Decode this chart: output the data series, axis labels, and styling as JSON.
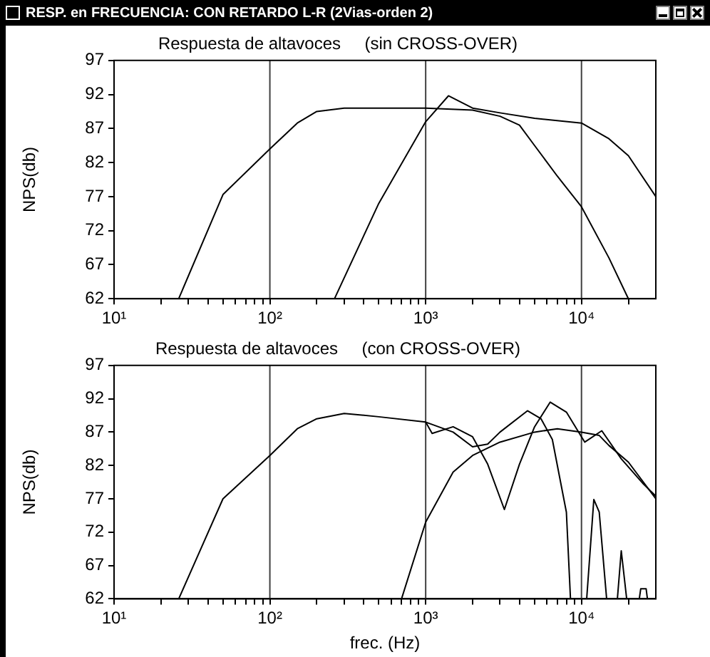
{
  "chart_data": [
    {
      "type": "line",
      "title": "Respuesta de altavoces     (sin CROSS-OVER)",
      "ylabel": "NPS(db)",
      "log": "x",
      "annotations": [
        "RESP. en FRECUENCIA: CON RETARDO L-R (2Vias-orden 2)"
      ],
      "xlim": [
        10,
        30000
      ],
      "xticks": [
        {
          "value": 10,
          "label": "10¹"
        },
        {
          "value": 20,
          "label": null
        },
        {
          "value": 30,
          "label": null
        },
        {
          "value": 40,
          "label": null
        },
        {
          "value": 50,
          "label": null
        },
        {
          "value": 60,
          "label": null
        },
        {
          "value": 70,
          "label": null
        },
        {
          "value": 80,
          "label": null
        },
        {
          "value": 90,
          "label": null
        },
        {
          "value": 100,
          "label": "10²"
        },
        {
          "value": 200,
          "label": null
        },
        {
          "value": 300,
          "label": null
        },
        {
          "value": 400,
          "label": null
        },
        {
          "value": 500,
          "label": null
        },
        {
          "value": 600,
          "label": null
        },
        {
          "value": 700,
          "label": null
        },
        {
          "value": 800,
          "label": null
        },
        {
          "value": 900,
          "label": null
        },
        {
          "value": 1000,
          "label": "10³"
        },
        {
          "value": 2000,
          "label": null
        },
        {
          "value": 3000,
          "label": null
        },
        {
          "value": 4000,
          "label": null
        },
        {
          "value": 5000,
          "label": null
        },
        {
          "value": 6000,
          "label": null
        },
        {
          "value": 7000,
          "label": null
        },
        {
          "value": 8000,
          "label": null
        },
        {
          "value": 9000,
          "label": null
        },
        {
          "value": 10000,
          "label": "10⁴"
        },
        {
          "value": 20000,
          "label": null
        }
      ],
      "ylim": [
        62,
        97
      ],
      "yticks": [
        62,
        67,
        72,
        77,
        82,
        87,
        92,
        97
      ],
      "ref_lines": [
        {
          "axis": "x",
          "value": 100,
          "color": "#404040"
        },
        {
          "axis": "x",
          "value": 1000,
          "color": "#404040"
        },
        {
          "axis": "x",
          "value": 10000,
          "color": "#404040"
        }
      ],
      "series": [
        {
          "color": "#000000",
          "x": [
            26,
            50,
            100,
            150,
            200,
            300,
            1000,
            2000,
            3000,
            4000,
            5000,
            7000,
            10000,
            15000,
            20000
          ],
          "values": [
            62,
            77.3,
            84,
            87.8,
            89.5,
            90,
            90,
            89.7,
            88.8,
            87.5,
            84.5,
            80,
            75.5,
            68,
            62
          ]
        },
        {
          "color": "#000000",
          "x": [
            260,
            500,
            1000,
            1400,
            2000,
            3000,
            5000,
            10000,
            15000,
            20000,
            30000
          ],
          "values": [
            62,
            76,
            88,
            91.8,
            90,
            89.3,
            88.5,
            87.8,
            85.5,
            83,
            77
          ]
        }
      ]
    },
    {
      "type": "line",
      "title": "Respuesta de altavoces     (con CROSS-OVER)",
      "xlabel": "frec. (Hz)",
      "ylabel": "NPS(db)",
      "log": "x",
      "xlim": [
        10,
        30000
      ],
      "xticks": [
        {
          "value": 10,
          "label": "10¹"
        },
        {
          "value": 20,
          "label": null
        },
        {
          "value": 30,
          "label": null
        },
        {
          "value": 40,
          "label": null
        },
        {
          "value": 50,
          "label": null
        },
        {
          "value": 60,
          "label": null
        },
        {
          "value": 70,
          "label": null
        },
        {
          "value": 80,
          "label": null
        },
        {
          "value": 90,
          "label": null
        },
        {
          "value": 100,
          "label": "10²"
        },
        {
          "value": 200,
          "label": null
        },
        {
          "value": 300,
          "label": null
        },
        {
          "value": 400,
          "label": null
        },
        {
          "value": 500,
          "label": null
        },
        {
          "value": 600,
          "label": null
        },
        {
          "value": 700,
          "label": null
        },
        {
          "value": 800,
          "label": null
        },
        {
          "value": 900,
          "label": null
        },
        {
          "value": 1000,
          "label": "10³"
        },
        {
          "value": 2000,
          "label": null
        },
        {
          "value": 3000,
          "label": null
        },
        {
          "value": 4000,
          "label": null
        },
        {
          "value": 5000,
          "label": null
        },
        {
          "value": 6000,
          "label": null
        },
        {
          "value": 7000,
          "label": null
        },
        {
          "value": 8000,
          "label": null
        },
        {
          "value": 9000,
          "label": null
        },
        {
          "value": 10000,
          "label": "10⁴"
        },
        {
          "value": 20000,
          "label": null
        }
      ],
      "ylim": [
        62,
        97
      ],
      "yticks": [
        62,
        67,
        72,
        77,
        82,
        87,
        92,
        97
      ],
      "ref_lines": [
        {
          "axis": "x",
          "value": 100,
          "color": "#404040"
        },
        {
          "axis": "x",
          "value": 1000,
          "color": "#404040"
        },
        {
          "axis": "x",
          "value": 10000,
          "color": "#404040"
        }
      ],
      "series": [
        {
          "color": "#000000",
          "x": [
            26,
            50,
            100,
            150,
            200,
            300,
            500,
            1000,
            1500,
            2000,
            2500,
            3000,
            4500,
            5500,
            6500,
            8000,
            8500,
            9500,
            10800,
            12000,
            13000,
            14500,
            16000,
            17000,
            18000,
            19500,
            22000,
            23500,
            24000,
            26000,
            26500
          ],
          "values": [
            62,
            77,
            83.5,
            87.5,
            89,
            89.8,
            89.3,
            88.5,
            87,
            84.8,
            85.2,
            87,
            90.2,
            89,
            85.9,
            75,
            62,
            null,
            62,
            76.9,
            75,
            62,
            null,
            62,
            69.2,
            62,
            null,
            62,
            63.5,
            63.5,
            62
          ]
        },
        {
          "color": "#000000",
          "x": [
            700,
            1000,
            1500,
            2000,
            3000,
            5000,
            7000,
            10000,
            13000,
            15000,
            20000,
            30000
          ],
          "values": [
            62,
            73.5,
            81,
            83.5,
            85.5,
            87,
            87.5,
            87,
            86.5,
            85,
            82.5,
            77
          ]
        },
        {
          "color": "#000000",
          "x": [
            1000,
            1100,
            1500,
            2000,
            2500,
            3200,
            4000,
            5000,
            6300,
            8000,
            10000,
            10500,
            13500,
            18000,
            25000,
            30000
          ],
          "values": [
            88.5,
            86.8,
            87.8,
            86.3,
            82.2,
            75.4,
            82.2,
            87.8,
            91.5,
            90,
            86.3,
            85.5,
            87.2,
            83,
            79.2,
            77.4
          ]
        }
      ]
    }
  ]
}
